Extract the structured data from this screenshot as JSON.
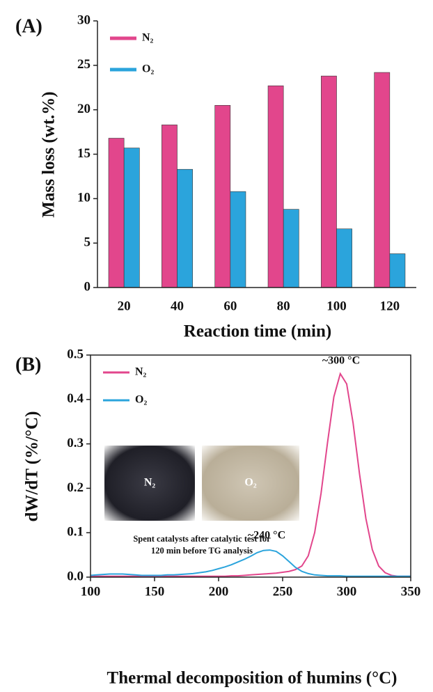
{
  "chart_data": [
    {
      "type": "bar",
      "panel_label": "(A)",
      "ylabel": "Mass loss (wt.%)",
      "xlabel": "Reaction time (min)",
      "categories": [
        "20",
        "40",
        "60",
        "80",
        "100",
        "120"
      ],
      "series": [
        {
          "name": "N₂",
          "color": "#e2468c",
          "values": [
            16.8,
            18.3,
            20.5,
            22.7,
            23.8,
            24.2
          ]
        },
        {
          "name": "O₂",
          "color": "#2ba4dc",
          "values": [
            15.7,
            13.3,
            10.8,
            8.8,
            6.6,
            3.8
          ]
        }
      ],
      "ylim": [
        0,
        30
      ],
      "yticks": [
        0,
        5,
        10,
        15,
        20,
        25,
        30
      ]
    },
    {
      "type": "line",
      "panel_label": "(B)",
      "ylabel": "dW/dT (%/°C)",
      "xlabel": "Thermal decomposition of humins (°C)",
      "x": [
        100,
        105,
        110,
        115,
        120,
        125,
        130,
        135,
        140,
        145,
        150,
        155,
        160,
        165,
        170,
        175,
        180,
        185,
        190,
        195,
        200,
        205,
        210,
        215,
        220,
        225,
        230,
        235,
        240,
        245,
        250,
        255,
        260,
        265,
        270,
        275,
        280,
        285,
        290,
        295,
        300,
        305,
        310,
        315,
        320,
        325,
        330,
        335,
        340,
        345,
        350
      ],
      "series": [
        {
          "name": "N₂",
          "color": "#e2468c",
          "values": [
            0.002,
            0.002,
            0.002,
            0.002,
            0.002,
            0.002,
            0.002,
            0.002,
            0.002,
            0.002,
            0.002,
            0.002,
            0.002,
            0.002,
            0.002,
            0.002,
            0.002,
            0.002,
            0.002,
            0.002,
            0.002,
            0.002,
            0.003,
            0.003,
            0.004,
            0.005,
            0.006,
            0.007,
            0.008,
            0.009,
            0.011,
            0.013,
            0.017,
            0.025,
            0.048,
            0.1,
            0.189,
            0.302,
            0.406,
            0.458,
            0.435,
            0.347,
            0.233,
            0.132,
            0.062,
            0.025,
            0.01,
            0.004,
            0.002,
            0.002,
            0.002
          ]
        },
        {
          "name": "O₂",
          "color": "#2ba4dc",
          "values": [
            0.004,
            0.005,
            0.006,
            0.007,
            0.007,
            0.007,
            0.006,
            0.005,
            0.004,
            0.004,
            0.004,
            0.004,
            0.005,
            0.005,
            0.006,
            0.007,
            0.008,
            0.01,
            0.012,
            0.015,
            0.019,
            0.023,
            0.028,
            0.034,
            0.04,
            0.047,
            0.055,
            0.06,
            0.061,
            0.058,
            0.048,
            0.035,
            0.022,
            0.013,
            0.008,
            0.005,
            0.004,
            0.003,
            0.003,
            0.003,
            0.002,
            0.002,
            0.002,
            0.002,
            0.002,
            0.002,
            0.002,
            0.002,
            0.002,
            0.002,
            0.002
          ]
        }
      ],
      "xlim": [
        100,
        350
      ],
      "xticks": [
        100,
        150,
        200,
        250,
        300,
        350
      ],
      "ylim": [
        0,
        0.5
      ],
      "yticks": [
        {
          "value": 0,
          "label": "0.0"
        },
        0.1,
        0.2,
        0.3,
        0.4,
        0.5
      ],
      "annotations": [
        "~300 °C",
        "~240 °C"
      ],
      "inset_labels": [
        "N₂",
        "O₂"
      ],
      "inset_caption": [
        "Spent catalysts after catalytic test for",
        "120 min before TG analysis"
      ]
    }
  ]
}
